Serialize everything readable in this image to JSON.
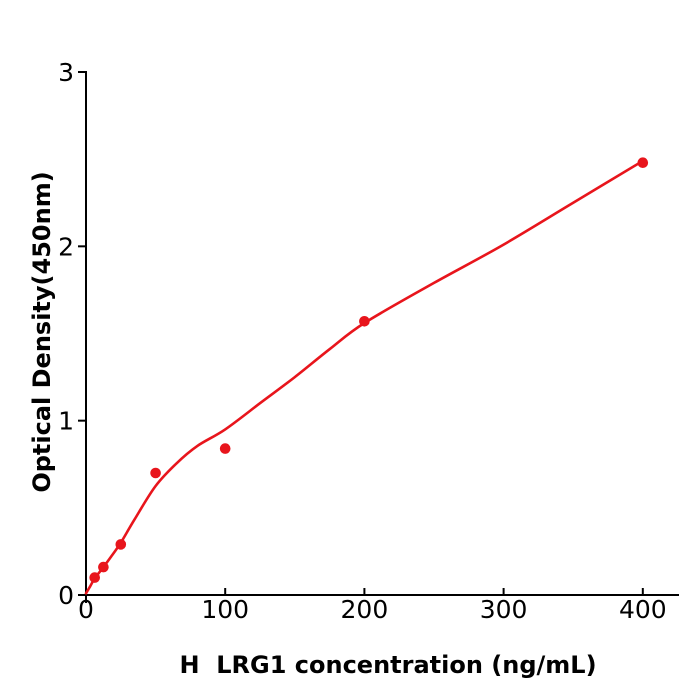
{
  "chart_data": {
    "type": "scatter",
    "title": "",
    "xlabel": "H  LRG1 concentration (ng/mL)",
    "ylabel": "Optical Density(450nm)",
    "xlim": [
      0,
      426
    ],
    "ylim": [
      0,
      3
    ],
    "x_ticks": [
      0,
      100,
      200,
      300,
      400
    ],
    "y_ticks": [
      0,
      1,
      2,
      3
    ],
    "grid": false,
    "legend": false,
    "axis_color": "#000000",
    "tick_label_color": "#000000",
    "series": [
      {
        "name": "standard-data-points",
        "type": "scatter",
        "color": "#e8151c",
        "marker": "circle",
        "x": [
          6.25,
          12.5,
          25,
          50,
          100,
          200,
          400
        ],
        "y": [
          0.1,
          0.16,
          0.29,
          0.7,
          0.84,
          1.57,
          2.48
        ]
      },
      {
        "name": "fit-curve",
        "type": "line",
        "color": "#e8151c",
        "x": [
          0,
          3,
          6.25,
          12.5,
          18,
          25,
          35,
          50,
          65,
          80,
          100,
          125,
          150,
          175,
          200,
          250,
          300,
          350,
          400
        ],
        "y": [
          0.01,
          0.05,
          0.095,
          0.16,
          0.22,
          0.3,
          0.435,
          0.625,
          0.755,
          0.855,
          0.95,
          1.1,
          1.25,
          1.41,
          1.56,
          1.79,
          2.01,
          2.25,
          2.49
        ]
      }
    ]
  }
}
